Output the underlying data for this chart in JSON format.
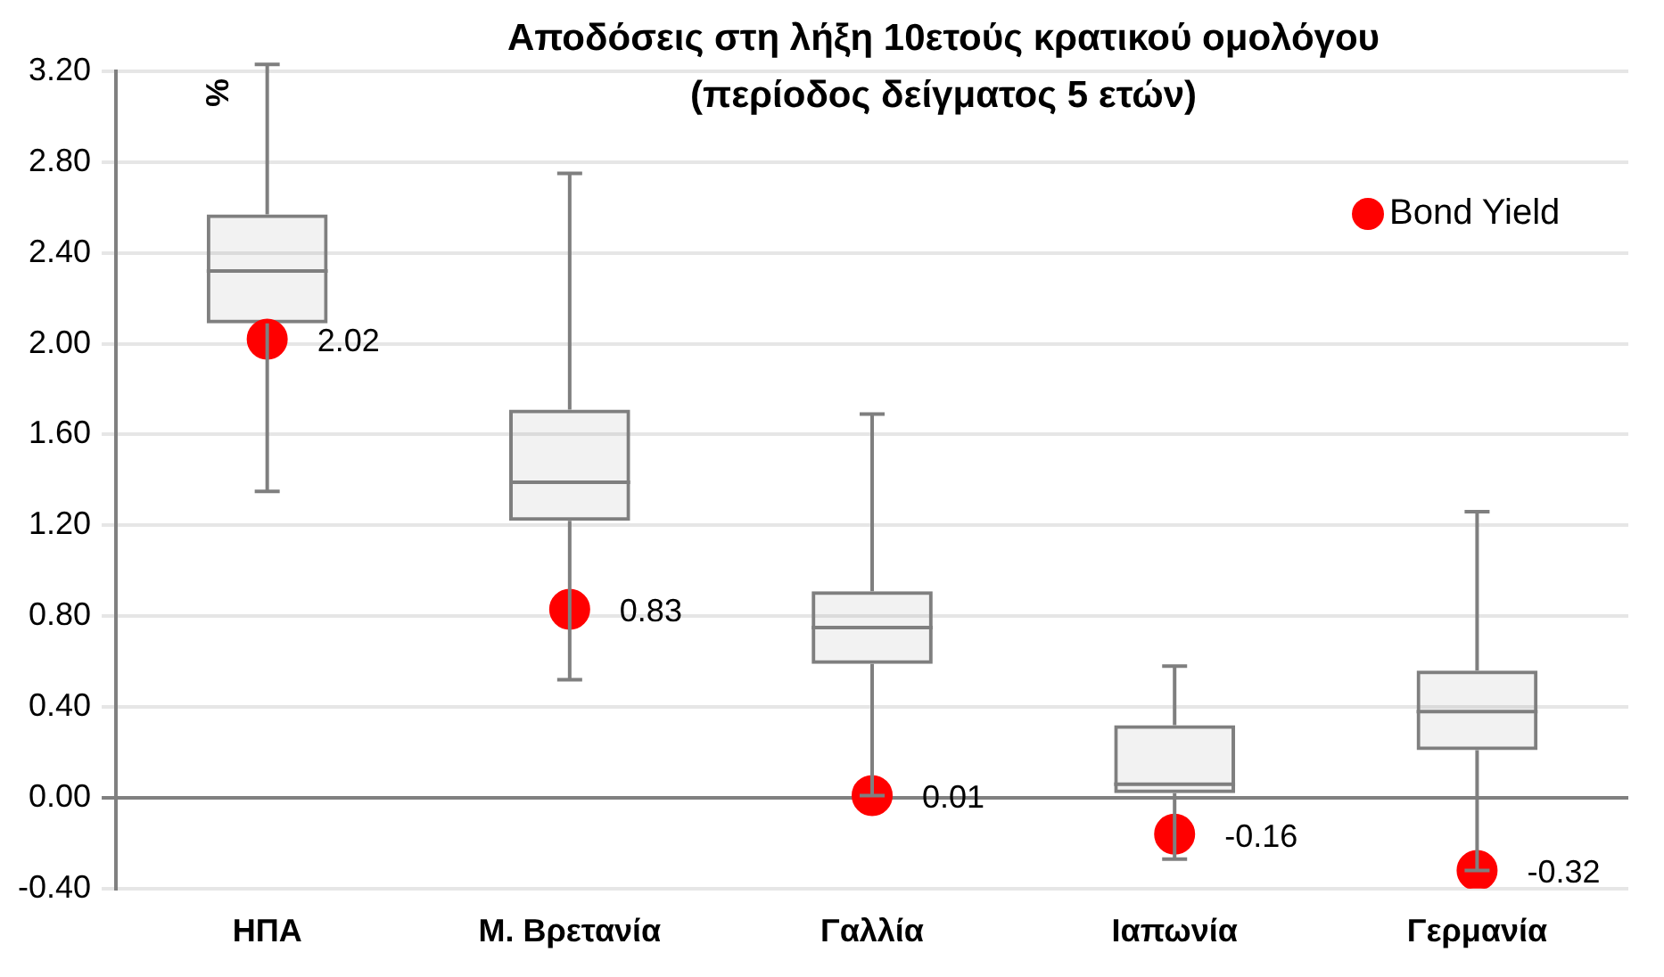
{
  "chart_data": {
    "type": "box",
    "title": "Αποδόσεις στη λήξη 10ετούς κρατικού ομολόγου\n(περίοδος δείγματος 5 ετών)",
    "ylabel": "%",
    "categories": [
      "ΗΠΑ",
      "Μ. Βρετανία",
      "Γαλλία",
      "Ιαπωνία",
      "Γερμανία"
    ],
    "series": [
      {
        "color": "#7f7f7f",
        "boxes": [
          {
            "low": 1.35,
            "q1": 2.09,
            "median": 2.32,
            "q3": 2.57,
            "high": 3.23
          },
          {
            "low": 0.52,
            "q1": 1.22,
            "median": 1.39,
            "q3": 1.71,
            "high": 2.75
          },
          {
            "low": 0.01,
            "q1": 0.59,
            "median": 0.75,
            "q3": 0.91,
            "high": 1.69
          },
          {
            "low": -0.27,
            "q1": 0.02,
            "median": 0.06,
            "q3": 0.32,
            "high": 0.58
          },
          {
            "low": -0.32,
            "q1": 0.21,
            "median": 0.38,
            "q3": 0.56,
            "high": 1.26
          }
        ]
      },
      {
        "type": "scatter",
        "name": "Bond Yield",
        "color": "#ff0000",
        "x": [
          "ΗΠΑ",
          "Μ. Βρετανία",
          "Γαλλία",
          "Ιαπωνία",
          "Γερμανία"
        ],
        "values": [
          2.02,
          0.83,
          0.01,
          -0.16,
          -0.32
        ]
      }
    ],
    "ylim": [
      -0.4,
      3.2
    ],
    "yticks": [
      {
        "value": -0.4,
        "label": "-0.40"
      },
      {
        "value": 0,
        "label": "0.00"
      },
      {
        "value": 0.4,
        "label": "0.40"
      },
      {
        "value": 0.8,
        "label": "0.80"
      },
      {
        "value": 1.2,
        "label": "1.20"
      },
      {
        "value": 1.6,
        "label": "1.60"
      },
      {
        "value": 2,
        "label": "2.00"
      },
      {
        "value": 2.4,
        "label": "2.40"
      },
      {
        "value": 2.8,
        "label": "2.80"
      },
      {
        "value": 3.2,
        "label": "3.20"
      }
    ],
    "grid": "y",
    "legend": "top right",
    "marker": "circle",
    "data_labels": true
  }
}
